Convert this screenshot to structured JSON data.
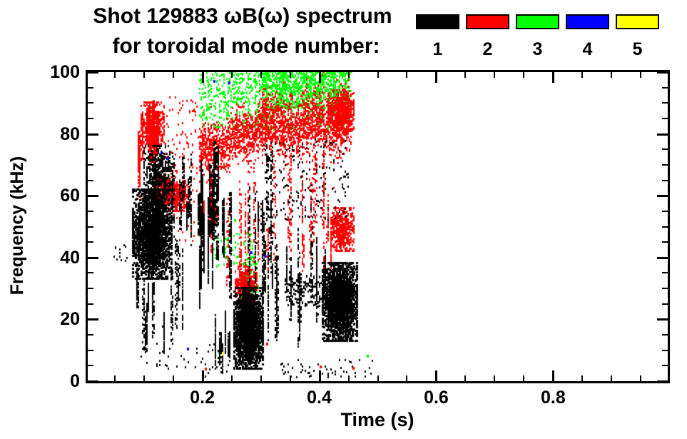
{
  "header": {
    "title": "Shot 129883 ωB(ω) spectrum",
    "subtitle": "for toroidal mode number:"
  },
  "legend": {
    "items": [
      {
        "label": "1",
        "color": "#000000"
      },
      {
        "label": "2",
        "color": "#ff0000"
      },
      {
        "label": "3",
        "color": "#00ff00"
      },
      {
        "label": "4",
        "color": "#0000ff"
      },
      {
        "label": "5",
        "color": "#ffff00"
      }
    ]
  },
  "chart_data": {
    "type": "scatter",
    "title": "Shot 129883 ωB(ω) spectrum for toroidal mode number: 1 2 3 4 5",
    "xlabel": "Time (s)",
    "ylabel": "Frequency (kHz)",
    "xlim": [
      0.004,
      0.996
    ],
    "ylim": [
      0,
      100
    ],
    "x_major": [
      {
        "v": 0.2,
        "label": "0.2"
      },
      {
        "v": 0.4,
        "label": "0.4"
      },
      {
        "v": 0.6,
        "label": "0.6"
      },
      {
        "v": 0.8,
        "label": "0.8"
      }
    ],
    "x_minor_step": 0.05,
    "y_major": [
      {
        "v": 0,
        "label": "0"
      },
      {
        "v": 20,
        "label": "20"
      },
      {
        "v": 40,
        "label": "40"
      },
      {
        "v": 60,
        "label": "60"
      },
      {
        "v": 80,
        "label": "80"
      },
      {
        "v": 100,
        "label": "100"
      }
    ],
    "y_minor_step": 5,
    "grid": false,
    "legend_position": "top-right",
    "modes": [
      {
        "n": 1,
        "color": "#000000"
      },
      {
        "n": 2,
        "color": "#ff0000"
      },
      {
        "n": 3,
        "color": "#00ff00"
      },
      {
        "n": 4,
        "color": "#0000ff"
      },
      {
        "n": 5,
        "color": "#ffff00"
      }
    ],
    "seed": 20129883,
    "clusters": [
      {
        "mode": 3,
        "kind": "scatter",
        "t": [
          0.195,
          0.305
        ],
        "f": [
          82,
          100
        ],
        "n": 420
      },
      {
        "mode": 3,
        "kind": "scatter",
        "t": [
          0.3,
          0.452
        ],
        "f": [
          88,
          100
        ],
        "n": 1150
      },
      {
        "mode": 3,
        "kind": "scatter",
        "t": [
          0.3,
          0.452
        ],
        "f": [
          81,
          89
        ],
        "n": 170
      },
      {
        "mode": 3,
        "kind": "blob",
        "t": [
          0.262,
          0.297
        ],
        "f": [
          22,
          40
        ],
        "n": 180
      },
      {
        "mode": 3,
        "kind": "scatter",
        "t": [
          0.215,
          0.29
        ],
        "f": [
          37,
          48
        ],
        "n": 90
      },
      {
        "mode": 3,
        "kind": "points",
        "pts": [
          [
            0.122,
            73.4
          ],
          [
            0.14,
            68.4
          ],
          [
            0.142,
            66.5
          ],
          [
            0.148,
            60.5
          ],
          [
            0.22,
            75
          ],
          [
            0.228,
            9.2
          ],
          [
            0.255,
            52
          ],
          [
            0.482,
            8
          ]
        ]
      },
      {
        "mode": 2,
        "kind": "vstreaks",
        "t": [
          0.088,
          0.138
        ],
        "f": [
          62,
          93
        ],
        "k": 11,
        "n": 850
      },
      {
        "mode": 2,
        "kind": "blob",
        "t": [
          0.095,
          0.134
        ],
        "f": [
          74,
          90
        ],
        "n": 480
      },
      {
        "mode": 2,
        "kind": "blob",
        "t": [
          0.116,
          0.15
        ],
        "f": [
          57,
          66
        ],
        "n": 320
      },
      {
        "mode": 2,
        "kind": "blob",
        "t": [
          0.138,
          0.174
        ],
        "f": [
          55,
          65
        ],
        "n": 380
      },
      {
        "mode": 2,
        "kind": "scatter",
        "t": [
          0.135,
          0.19
        ],
        "f": [
          58,
          92
        ],
        "n": 110
      },
      {
        "mode": 2,
        "kind": "scatter",
        "t": [
          0.085,
          0.185
        ],
        "f": [
          45,
          60
        ],
        "n": 50
      },
      {
        "mode": 2,
        "kind": "band",
        "t": [
          0.193,
          0.31
        ],
        "c": [
          73,
          83
        ],
        "hw": 4,
        "n": 950
      },
      {
        "mode": 2,
        "kind": "band",
        "t": [
          0.3,
          0.455
        ],
        "c": [
          82,
          84
        ],
        "hw": 5,
        "n": 1550
      },
      {
        "mode": 2,
        "kind": "blob",
        "t": [
          0.415,
          0.457
        ],
        "f": [
          81,
          94
        ],
        "n": 560
      },
      {
        "mode": 2,
        "kind": "vstreaks",
        "t": [
          0.24,
          0.445
        ],
        "f": [
          28,
          76
        ],
        "k": 20,
        "n": 650
      },
      {
        "mode": 2,
        "kind": "vstreaks",
        "t": [
          0.195,
          0.25
        ],
        "f": [
          40,
          75
        ],
        "k": 6,
        "n": 230
      },
      {
        "mode": 2,
        "kind": "blob",
        "t": [
          0.255,
          0.293
        ],
        "f": [
          25,
          37
        ],
        "n": 430
      },
      {
        "mode": 2,
        "kind": "blob",
        "t": [
          0.418,
          0.458
        ],
        "f": [
          42,
          56
        ],
        "n": 560
      },
      {
        "mode": 2,
        "kind": "points",
        "pts": [
          [
            0.205,
            4
          ],
          [
            0.292,
            4.8
          ],
          [
            0.402,
            4.6
          ],
          [
            0.458,
            4.2
          ],
          [
            0.31,
            12
          ]
        ]
      },
      {
        "mode": 1,
        "kind": "blob",
        "t": [
          0.08,
          0.145
        ],
        "f": [
          33,
          62
        ],
        "n": 2500,
        "s": [
          3,
          3
        ]
      },
      {
        "mode": 1,
        "kind": "blob",
        "t": [
          0.1,
          0.148
        ],
        "f": [
          58,
          76
        ],
        "n": 550
      },
      {
        "mode": 1,
        "kind": "vstreaks",
        "t": [
          0.082,
          0.168
        ],
        "f": [
          8,
          48
        ],
        "k": 13,
        "n": 650
      },
      {
        "mode": 1,
        "kind": "vstreaks",
        "t": [
          0.148,
          0.185
        ],
        "f": [
          42,
          78
        ],
        "k": 6,
        "n": 300
      },
      {
        "mode": 1,
        "kind": "scatter",
        "t": [
          0.048,
          0.072
        ],
        "f": [
          38,
          44
        ],
        "n": 14
      },
      {
        "mode": 1,
        "kind": "vstreaks",
        "t": [
          0.193,
          0.252
        ],
        "f": [
          22,
          80
        ],
        "k": 15,
        "n": 1500,
        "s": [
          2,
          4
        ]
      },
      {
        "mode": 1,
        "kind": "vstreaks",
        "t": [
          0.198,
          0.248
        ],
        "f": [
          0,
          24
        ],
        "k": 7,
        "n": 350
      },
      {
        "mode": 1,
        "kind": "blob",
        "t": [
          0.252,
          0.302
        ],
        "f": [
          4,
          30
        ],
        "n": 2300,
        "s": [
          3,
          3
        ]
      },
      {
        "mode": 1,
        "kind": "vstreaks",
        "t": [
          0.255,
          0.335
        ],
        "f": [
          28,
          78
        ],
        "k": 9,
        "n": 480
      },
      {
        "mode": 1,
        "kind": "vstreaks",
        "t": [
          0.29,
          0.41
        ],
        "f": [
          8,
          52
        ],
        "k": 16,
        "n": 800
      },
      {
        "mode": 1,
        "kind": "scatter",
        "t": [
          0.3,
          0.45
        ],
        "f": [
          52,
          78
        ],
        "n": 190
      },
      {
        "mode": 1,
        "kind": "scatter",
        "t": [
          0.34,
          0.405
        ],
        "f": [
          24,
          34
        ],
        "n": 160
      },
      {
        "mode": 1,
        "kind": "blob",
        "t": [
          0.405,
          0.463
        ],
        "f": [
          13,
          38
        ],
        "n": 2400,
        "s": [
          3,
          3
        ]
      },
      {
        "mode": 1,
        "kind": "scatter",
        "t": [
          0.33,
          0.49
        ],
        "f": [
          1,
          7
        ],
        "n": 55
      },
      {
        "mode": 1,
        "kind": "scatter",
        "t": [
          0.09,
          0.25
        ],
        "f": [
          1,
          12
        ],
        "n": 40
      },
      {
        "mode": 4,
        "kind": "points",
        "pts": [
          [
            0.13,
            74
          ],
          [
            0.141,
            72
          ],
          [
            0.175,
            10.5
          ],
          [
            0.22,
            97
          ],
          [
            0.245,
            96.5
          ],
          [
            0.284,
            41.5
          ],
          [
            0.306,
            40.5
          ]
        ]
      },
      {
        "mode": 5,
        "kind": "points",
        "pts": [
          [
            0.235,
            9
          ]
        ]
      }
    ]
  }
}
